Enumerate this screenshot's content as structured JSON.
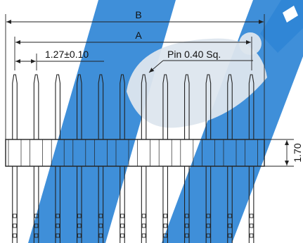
{
  "drawing": {
    "dimension_b": "B",
    "dimension_a": "A",
    "pitch": "1.27±0.10",
    "pin_callout": "Pin 0.40 Sq.",
    "insulator_height": "1.70"
  },
  "pins": {
    "count": 12
  },
  "colors": {
    "line": "#222222",
    "watermark_blue": "#2f86d6",
    "watermark_light": "#dde6ee"
  }
}
